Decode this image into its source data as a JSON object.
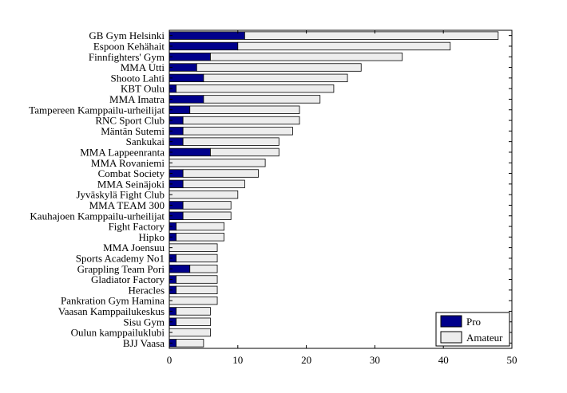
{
  "chart_data": {
    "type": "bar",
    "orientation": "horizontal",
    "stacked": true,
    "title": "",
    "xlabel": "",
    "ylabel": "",
    "xlim": [
      0,
      50
    ],
    "xticks": [
      0,
      10,
      20,
      30,
      40,
      50
    ],
    "grid": false,
    "legend_position": "bottom-right",
    "categories": [
      "GB Gym Helsinki",
      "Espoon Kehähait",
      "Finnfighters' Gym",
      "MMA Utti",
      "Shooto Lahti",
      "KBT Oulu",
      "MMA Imatra",
      "Tampereen Kamppailu-urheilijat",
      "RNC Sport Club",
      "Mäntän Sutemi",
      "Sankukai",
      "MMA Lappeenranta",
      "MMA Rovaniemi",
      "Combat Society",
      "MMA Seinäjoki",
      "Jyväskylä Fight Club",
      "MMA TEAM 300",
      "Kauhajoen Kamppailu-urheilijat",
      "Fight Factory",
      "Hipko",
      "MMA Joensuu",
      "Sports Academy No1",
      "Grappling Team Pori",
      "Gladiator Factory",
      "Heracles",
      "Pankration Gym Hamina",
      "Vaasan Kamppailukeskus",
      "Sisu Gym",
      "Oulun kamppailuklubi",
      "BJJ Vaasa"
    ],
    "series": [
      {
        "name": "Pro",
        "color": "#00008b",
        "values": [
          11,
          10,
          6,
          4,
          5,
          1,
          5,
          3,
          2,
          2,
          2,
          6,
          0,
          2,
          2,
          0,
          2,
          2,
          1,
          1,
          0,
          1,
          3,
          1,
          1,
          0,
          1,
          1,
          0,
          1
        ]
      },
      {
        "name": "Amateur",
        "color": "#ededed",
        "values": [
          37,
          31,
          28,
          24,
          21,
          23,
          17,
          16,
          17,
          16,
          14,
          10,
          14,
          11,
          9,
          10,
          7,
          7,
          7,
          7,
          7,
          6,
          4,
          6,
          6,
          7,
          5,
          5,
          6,
          4
        ]
      }
    ]
  }
}
